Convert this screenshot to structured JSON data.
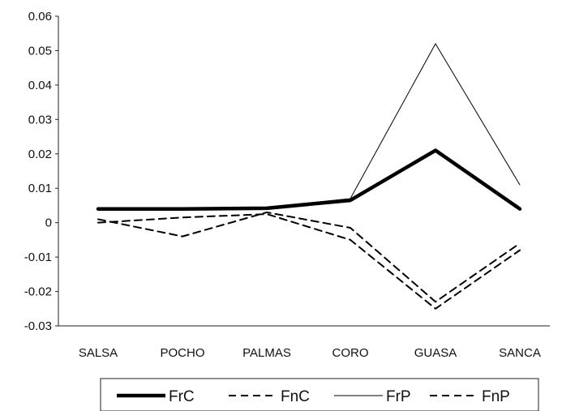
{
  "chart_data": {
    "type": "line",
    "title": "",
    "xlabel": "",
    "ylabel": "",
    "categories": [
      "SALSA",
      "POCHO",
      "PALMAS",
      "CORO",
      "GUASA",
      "SANCA"
    ],
    "ylim": [
      -0.03,
      0.06
    ],
    "yticks": [
      "0.06",
      "0.05",
      "0.04",
      "0.03",
      "0.02",
      "0.01",
      "0",
      "-0.01",
      "-0.02",
      "-0.03"
    ],
    "grid": false,
    "legend_position": "bottom",
    "series": [
      {
        "name": "FrC",
        "style": "solid-thick",
        "color": "#000000",
        "values": [
          0.004,
          0.004,
          0.0042,
          0.0065,
          0.021,
          0.004
        ]
      },
      {
        "name": "FnC",
        "style": "dashed",
        "color": "#000000",
        "values": [
          0.001,
          -0.004,
          0.003,
          -0.0015,
          -0.023,
          -0.006
        ]
      },
      {
        "name": "FrP",
        "style": "solid-thin",
        "color": "#000000",
        "values": [
          0.004,
          0.004,
          0.0045,
          0.007,
          0.052,
          0.011
        ]
      },
      {
        "name": "FnP",
        "style": "dashed",
        "color": "#000000",
        "values": [
          0.0,
          0.0015,
          0.0025,
          -0.005,
          -0.025,
          -0.008
        ]
      }
    ]
  }
}
